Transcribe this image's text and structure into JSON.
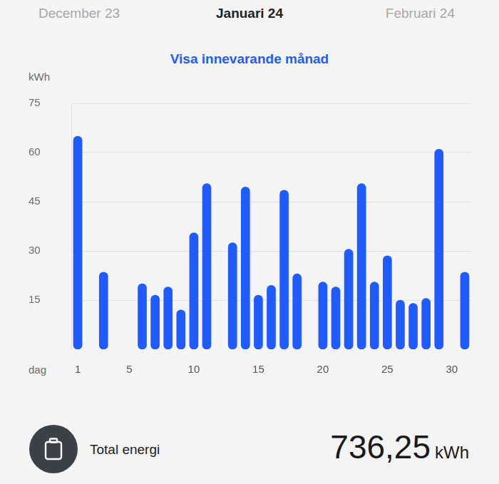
{
  "header": {
    "previous": "December 23",
    "current": "Januari 24",
    "next": "Februari 24",
    "link": "Visa innevarande månad"
  },
  "chart_data": {
    "type": "bar",
    "x_label": "dag",
    "y_label": "kWh",
    "categories": [
      "1",
      null,
      null,
      null,
      "5",
      null,
      null,
      null,
      null,
      "10",
      null,
      null,
      null,
      null,
      "15",
      null,
      null,
      null,
      null,
      "20",
      null,
      null,
      null,
      null,
      "25",
      null,
      null,
      null,
      null,
      "30",
      null
    ],
    "values": [
      65,
      null,
      23.5,
      null,
      null,
      20,
      16.5,
      19,
      12,
      35.5,
      50.5,
      null,
      32.5,
      49.5,
      16.5,
      19.5,
      48.5,
      23,
      null,
      20.5,
      19,
      30.5,
      50.5,
      20.5,
      28.5,
      15,
      14,
      15.5,
      61,
      null,
      23.5
    ],
    "color": "#1f5bff",
    "ylim": [
      0,
      75
    ],
    "yticks": [
      15,
      30,
      45,
      60,
      75
    ],
    "grid": true
  },
  "summary": {
    "label": "Total energi",
    "value": "736,25",
    "unit": "kWh"
  }
}
